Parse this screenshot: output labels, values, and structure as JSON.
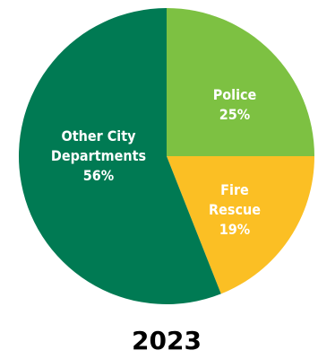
{
  "chart_data": {
    "type": "pie",
    "title": "2023",
    "slices": [
      {
        "label_lines": [
          "Police"
        ],
        "value": 25,
        "value_label": "25%",
        "color": "#7dc142"
      },
      {
        "label_lines": [
          "Fire",
          "Rescue"
        ],
        "value": 19,
        "value_label": "19%",
        "color": "#fbbf24"
      },
      {
        "label_lines": [
          "Other City",
          "Departments"
        ],
        "value": 56,
        "value_label": "56%",
        "color": "#007a53"
      }
    ],
    "start_angle_deg": 0,
    "direction": "clockwise",
    "legend": "none"
  }
}
